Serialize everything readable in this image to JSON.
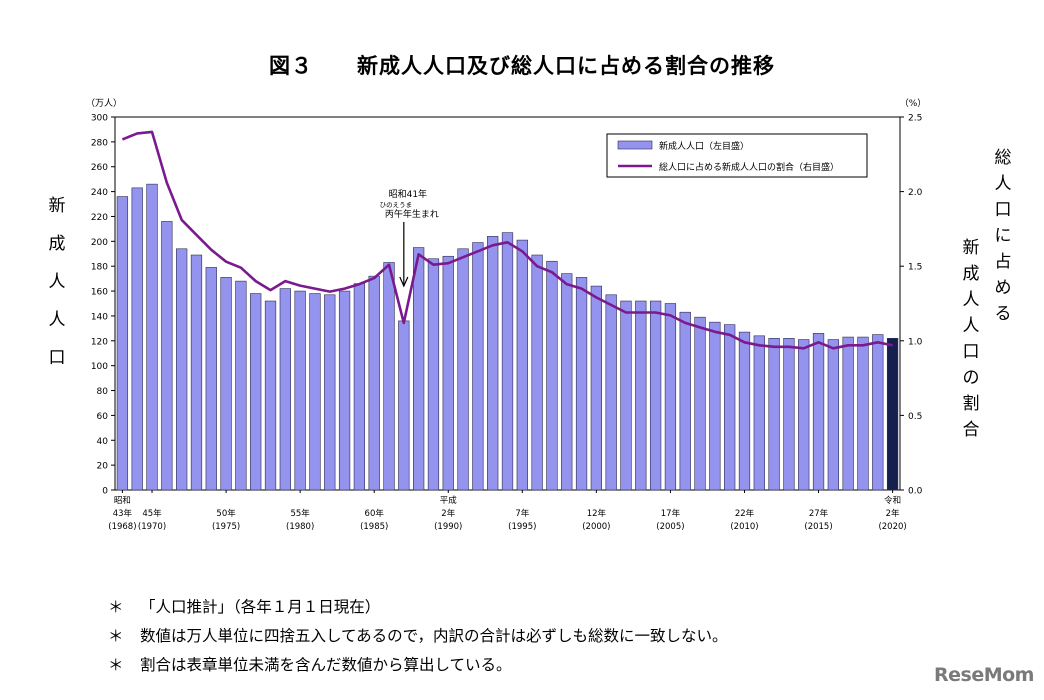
{
  "title": "図３　　新成人人口及び総人口に占める割合の推移",
  "left_axis_label": "新成人人口",
  "right_axis_label_col1": "総人口に占める",
  "right_axis_label_col2": "新成人人口の割合",
  "notes": [
    "「人口推計」（各年１月１日現在）",
    "数値は万人単位に四捨五入してあるので，内訳の合計は必ずしも総数に一致しない。",
    "割合は表章単位未満を含んだ数値から算出している。"
  ],
  "note_marker": "＊",
  "logo_text": "ReseMom",
  "colors": {
    "bar": "#9494ee",
    "bar_last": "#16204f",
    "line": "#7a1a8e",
    "axis": "#000000"
  },
  "chart_data": {
    "type": "bar+line",
    "title": "図３　　新成人人口及び総人口に占める割合の推移",
    "x_years": [
      1968,
      1969,
      1970,
      1971,
      1972,
      1973,
      1974,
      1975,
      1976,
      1977,
      1978,
      1979,
      1980,
      1981,
      1982,
      1983,
      1984,
      1985,
      1986,
      1987,
      1988,
      1989,
      1990,
      1991,
      1992,
      1993,
      1994,
      1995,
      1996,
      1997,
      1998,
      1999,
      2000,
      2001,
      2002,
      2003,
      2004,
      2005,
      2006,
      2007,
      2008,
      2009,
      2010,
      2011,
      2012,
      2013,
      2014,
      2015,
      2016,
      2017,
      2018,
      2019,
      2020
    ],
    "left_axis": {
      "unit": "（万人）",
      "ylim": [
        0,
        300
      ],
      "ticks": [
        0,
        20,
        40,
        60,
        80,
        100,
        120,
        140,
        160,
        180,
        200,
        220,
        240,
        260,
        280,
        300
      ]
    },
    "right_axis": {
      "unit": "（%）",
      "ylim": [
        0,
        2.5
      ],
      "ticks": [
        "0.0",
        "0.5",
        "1.0",
        "1.5",
        "2.0",
        "2.5"
      ]
    },
    "series": [
      {
        "name": "新成人人口（左目盛）",
        "type": "bar",
        "axis": "left",
        "values": [
          236,
          243,
          246,
          216,
          194,
          189,
          179,
          171,
          168,
          158,
          152,
          162,
          160,
          158,
          157,
          160,
          166,
          172,
          183,
          136,
          195,
          186,
          188,
          194,
          199,
          204,
          207,
          201,
          189,
          184,
          174,
          171,
          164,
          157,
          152,
          152,
          152,
          150,
          143,
          139,
          135,
          133,
          127,
          124,
          122,
          122,
          121,
          126,
          121,
          123,
          123,
          125,
          122
        ]
      },
      {
        "name": "総人口に占める新成人人口の割合（右目盛）",
        "type": "line",
        "axis": "right",
        "values": [
          2.35,
          2.39,
          2.4,
          2.06,
          1.81,
          1.71,
          1.61,
          1.53,
          1.49,
          1.4,
          1.34,
          1.4,
          1.37,
          1.35,
          1.33,
          1.35,
          1.38,
          1.42,
          1.51,
          1.12,
          1.58,
          1.51,
          1.52,
          1.56,
          1.6,
          1.64,
          1.66,
          1.6,
          1.5,
          1.46,
          1.38,
          1.35,
          1.29,
          1.24,
          1.19,
          1.19,
          1.19,
          1.17,
          1.12,
          1.09,
          1.06,
          1.04,
          0.99,
          0.97,
          0.96,
          0.96,
          0.95,
          0.99,
          0.95,
          0.97,
          0.97,
          0.99,
          0.97
        ]
      }
    ],
    "x_tick_labels": [
      {
        "year": 1968,
        "era": "昭和",
        "l1": "43年",
        "l2": "(1968)"
      },
      {
        "year": 1970,
        "era": "",
        "l1": "45年",
        "l2": "(1970)"
      },
      {
        "year": 1975,
        "era": "",
        "l1": "50年",
        "l2": "(1975)"
      },
      {
        "year": 1980,
        "era": "",
        "l1": "55年",
        "l2": "(1980)"
      },
      {
        "year": 1985,
        "era": "",
        "l1": "60年",
        "l2": "(1985)"
      },
      {
        "year": 1990,
        "era": "平成",
        "l1": "2年",
        "l2": "(1990)"
      },
      {
        "year": 1995,
        "era": "",
        "l1": "7年",
        "l2": "(1995)"
      },
      {
        "year": 2000,
        "era": "",
        "l1": "12年",
        "l2": "(2000)"
      },
      {
        "year": 2005,
        "era": "",
        "l1": "17年",
        "l2": "(2005)"
      },
      {
        "year": 2010,
        "era": "",
        "l1": "22年",
        "l2": "(2010)"
      },
      {
        "year": 2015,
        "era": "",
        "l1": "27年",
        "l2": "(2015)"
      },
      {
        "year": 2020,
        "era": "令和",
        "l1": "2年",
        "l2": "(2020)"
      }
    ],
    "annotation": {
      "year": 1987,
      "line1": "昭和41年",
      "ruby": "ひのえうま",
      "line2": "丙午年生まれ"
    },
    "legend": {
      "position": "top-right",
      "bar_label": "新成人人口（左目盛）",
      "line_label": "総人口に占める新成人人口の割合（右目盛）"
    }
  }
}
